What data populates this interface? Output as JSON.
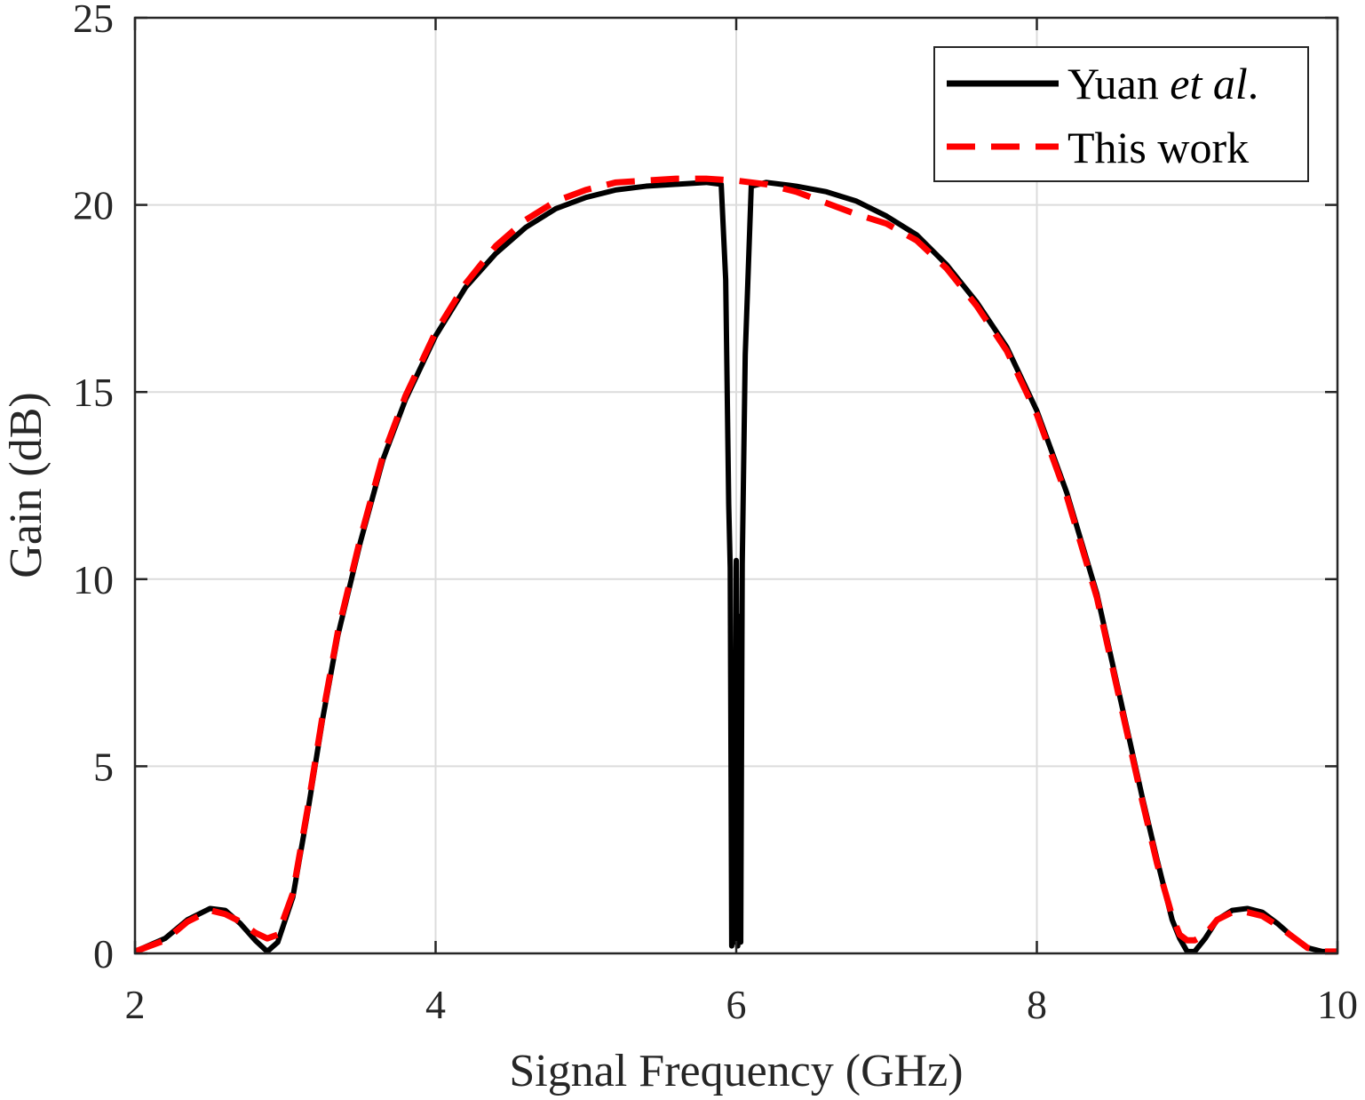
{
  "chart_data": {
    "type": "line",
    "title": "",
    "xlabel": "Signal Frequency (GHz)",
    "ylabel": "Gain (dB)",
    "xlim": [
      2,
      10
    ],
    "ylim": [
      0,
      25
    ],
    "xticks": [
      2,
      4,
      6,
      8,
      10
    ],
    "yticks": [
      0,
      5,
      10,
      15,
      20,
      25
    ],
    "grid": true,
    "legend_position": "top-right",
    "colors": {
      "yuan": "#000000",
      "this_work": "#ff0000",
      "axis": "#262626"
    },
    "series": [
      {
        "name": "Yuan et al.",
        "legend_main": "Yuan ",
        "legend_italic": "et al",
        "legend_end": ".",
        "style": "solid",
        "x": [
          2.0,
          2.2,
          2.35,
          2.5,
          2.6,
          2.7,
          2.8,
          2.88,
          2.95,
          3.05,
          3.15,
          3.25,
          3.35,
          3.5,
          3.65,
          3.8,
          4.0,
          4.2,
          4.4,
          4.6,
          4.8,
          5.0,
          5.2,
          5.4,
          5.6,
          5.8,
          5.9,
          5.93,
          5.95,
          5.96,
          5.97,
          5.98,
          5.99,
          6.0,
          6.01,
          6.02,
          6.03,
          6.04,
          6.06,
          6.1,
          6.2,
          6.4,
          6.6,
          6.8,
          7.0,
          7.2,
          7.4,
          7.6,
          7.8,
          8.0,
          8.2,
          8.4,
          8.6,
          8.7,
          8.8,
          8.9,
          8.95,
          9.0,
          9.05,
          9.12,
          9.2,
          9.3,
          9.4,
          9.5,
          9.6,
          9.7,
          9.8,
          9.9,
          10.0
        ],
        "y": [
          0.05,
          0.4,
          0.9,
          1.2,
          1.15,
          0.8,
          0.35,
          0.05,
          0.3,
          1.5,
          3.8,
          6.3,
          8.5,
          11.0,
          13.2,
          14.8,
          16.5,
          17.8,
          18.7,
          19.4,
          19.9,
          20.2,
          20.4,
          20.5,
          20.55,
          20.6,
          20.55,
          18.0,
          12.0,
          10.3,
          0.2,
          8.0,
          0.3,
          10.5,
          0.2,
          9.0,
          0.3,
          10.4,
          16.0,
          20.5,
          20.6,
          20.5,
          20.35,
          20.1,
          19.7,
          19.2,
          18.4,
          17.4,
          16.2,
          14.5,
          12.3,
          9.6,
          6.0,
          4.2,
          2.5,
          0.9,
          0.4,
          0.05,
          0.05,
          0.4,
          0.9,
          1.15,
          1.2,
          1.1,
          0.8,
          0.45,
          0.15,
          0.05,
          0.05
        ]
      },
      {
        "name": "This work",
        "style": "dashed",
        "x": [
          2.0,
          2.2,
          2.35,
          2.5,
          2.6,
          2.7,
          2.8,
          2.88,
          2.95,
          3.05,
          3.15,
          3.25,
          3.35,
          3.5,
          3.65,
          3.8,
          4.0,
          4.2,
          4.4,
          4.6,
          4.8,
          5.0,
          5.2,
          5.4,
          5.6,
          5.8,
          6.0,
          6.2,
          6.4,
          6.6,
          6.8,
          7.0,
          7.2,
          7.4,
          7.6,
          7.8,
          8.0,
          8.2,
          8.4,
          8.6,
          8.7,
          8.8,
          8.9,
          8.95,
          9.0,
          9.05,
          9.12,
          9.2,
          9.3,
          9.4,
          9.5,
          9.6,
          9.7,
          9.8,
          9.9,
          10.0
        ],
        "y": [
          0.05,
          0.35,
          0.85,
          1.15,
          1.05,
          0.85,
          0.55,
          0.4,
          0.5,
          1.6,
          3.9,
          6.4,
          8.6,
          11.1,
          13.3,
          14.9,
          16.6,
          17.9,
          18.9,
          19.6,
          20.1,
          20.4,
          20.6,
          20.65,
          20.7,
          20.7,
          20.65,
          20.55,
          20.35,
          20.05,
          19.75,
          19.5,
          19.05,
          18.3,
          17.3,
          16.1,
          14.4,
          12.2,
          9.5,
          5.9,
          4.1,
          2.4,
          1.0,
          0.5,
          0.35,
          0.35,
          0.5,
          0.9,
          1.1,
          1.1,
          1.0,
          0.75,
          0.45,
          0.15,
          0.05,
          0.05
        ]
      }
    ]
  }
}
